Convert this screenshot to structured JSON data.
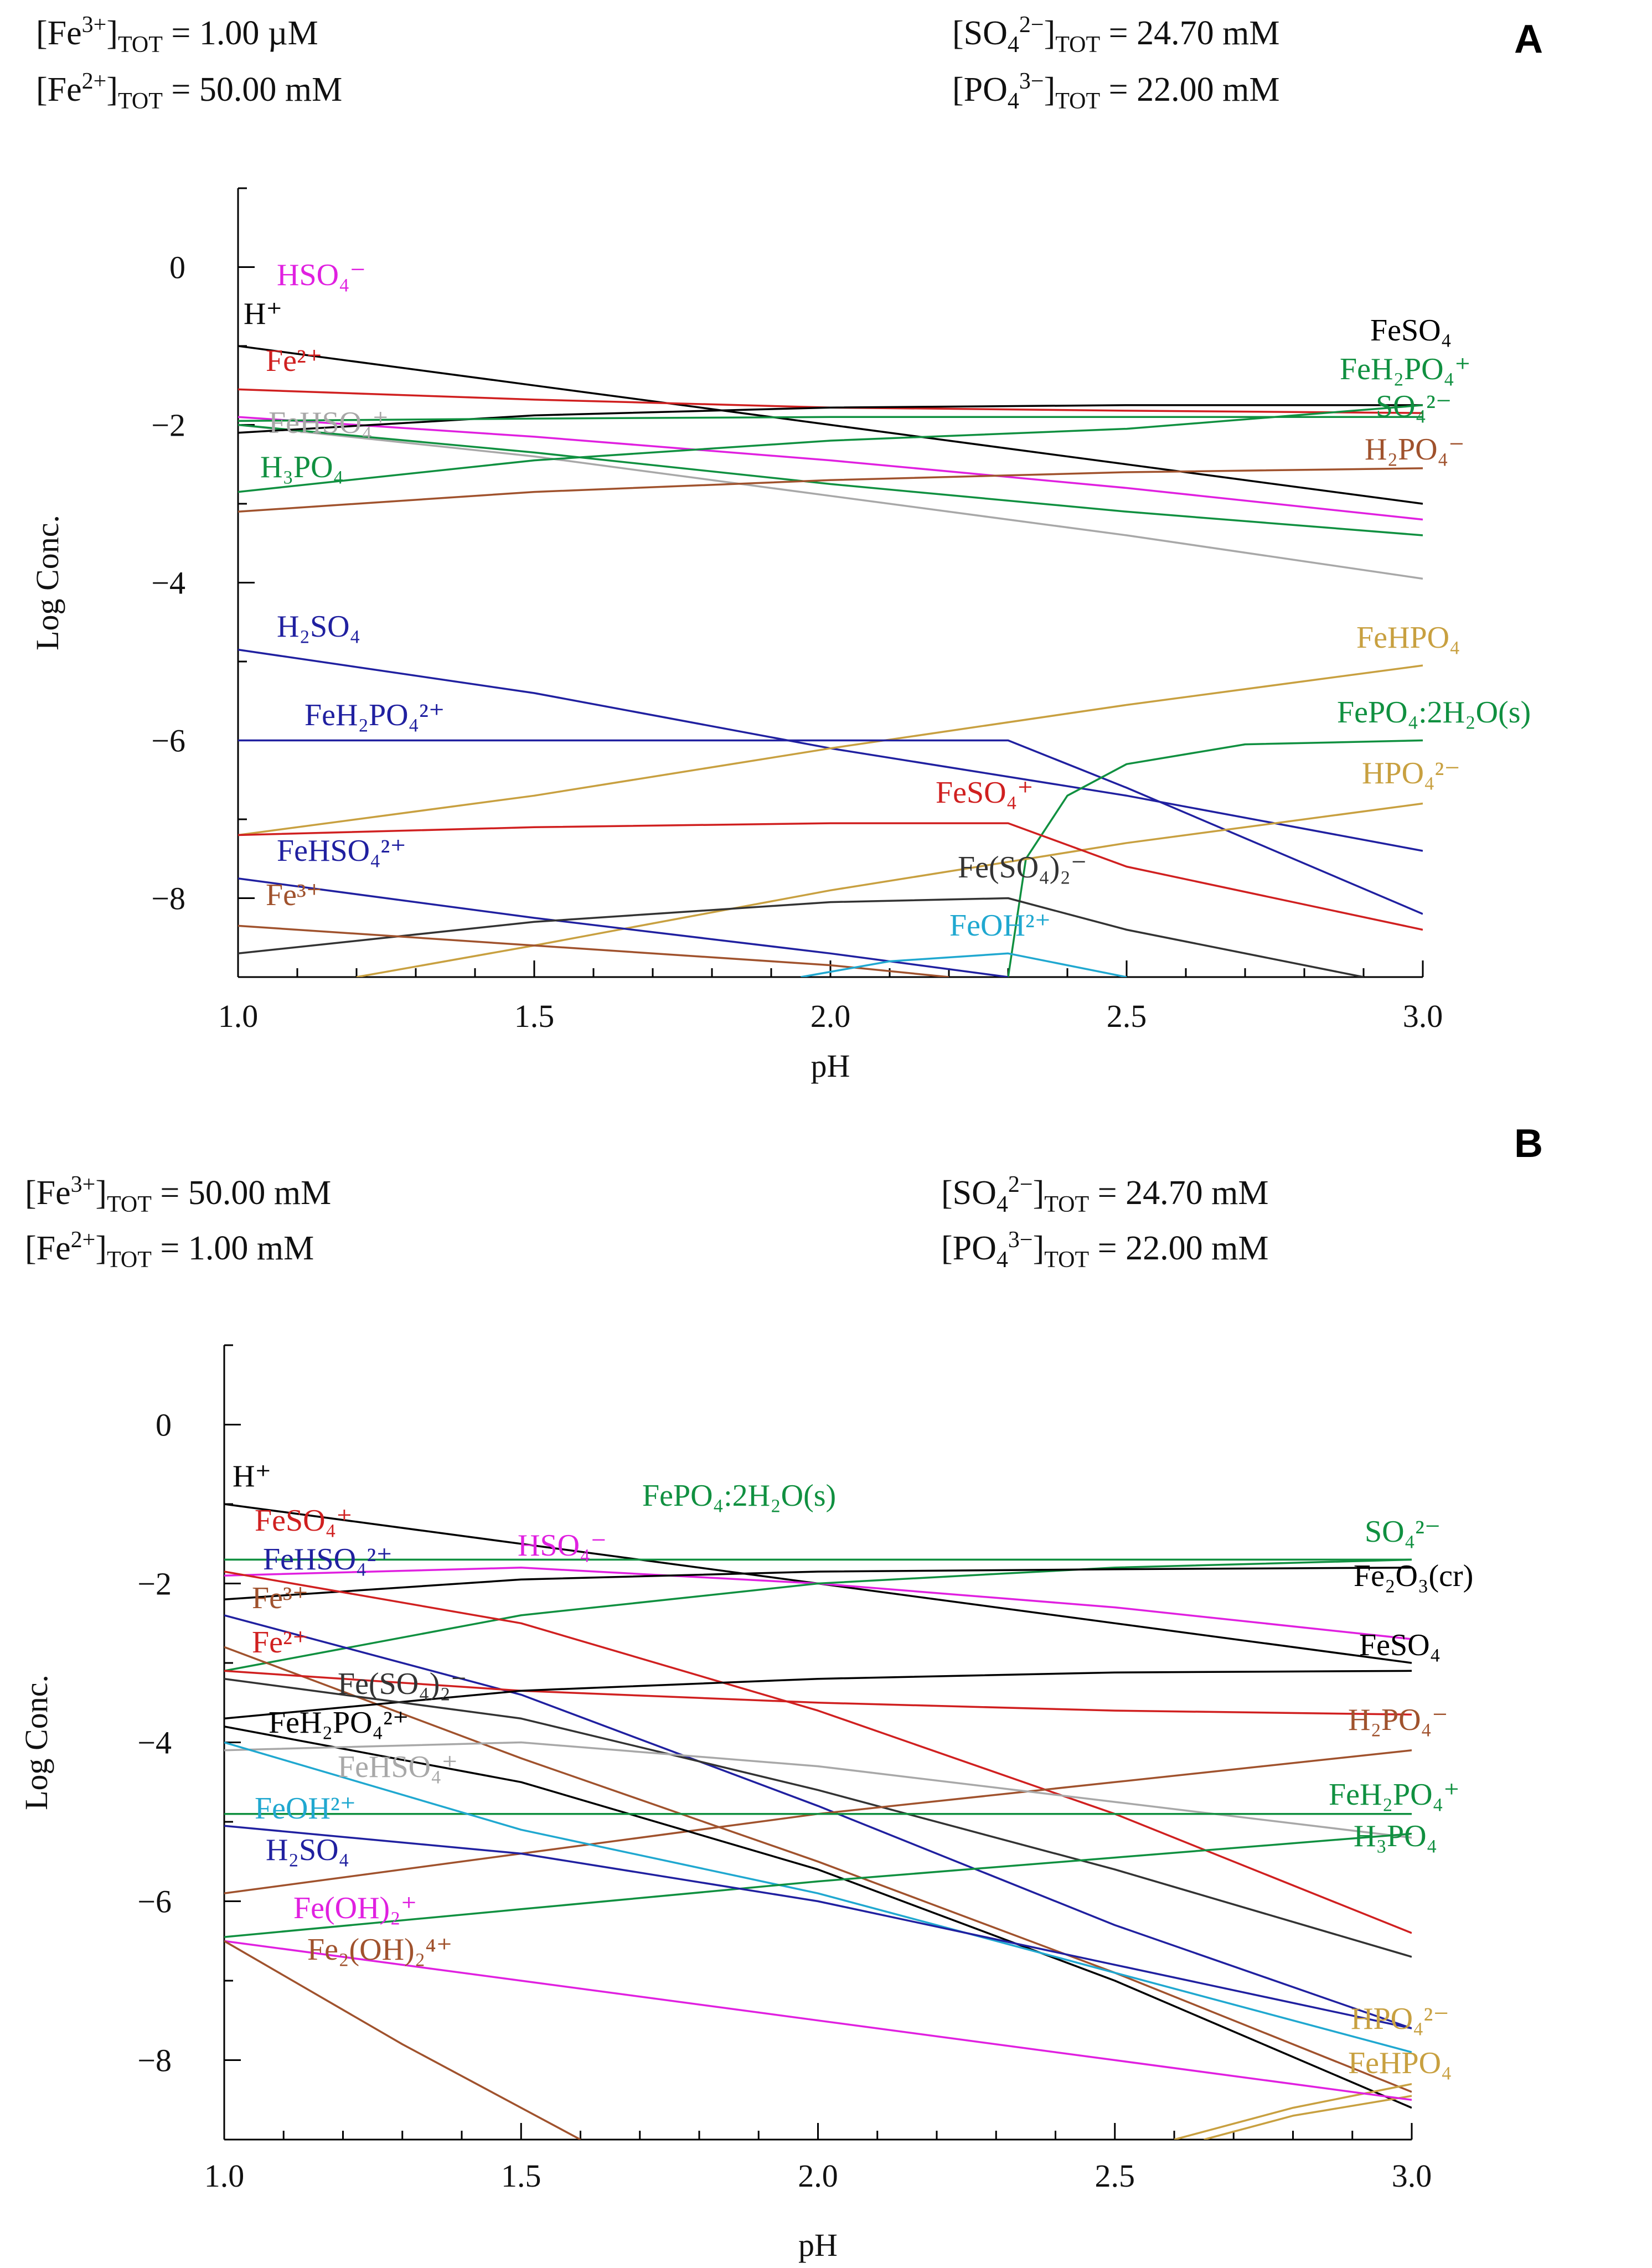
{
  "chart_data": [
    {
      "panel": "A",
      "type": "line",
      "xlabel": "pH",
      "ylabel": "Log Conc.",
      "xlim": [
        1.0,
        3.0
      ],
      "ylim": [
        -9,
        1
      ],
      "xticks": [
        "1.0",
        "1.5",
        "2.0",
        "2.5",
        "3.0"
      ],
      "yticks": [
        "0",
        "−2",
        "−4",
        "−6",
        "−8"
      ],
      "conditions": [
        {
          "text": "[Fe3+]TOT =   1.00 µM"
        },
        {
          "text": "[Fe2+]TOT =  50.00 mM"
        },
        {
          "text": "[SO42−]TOT =  24.70 mM"
        },
        {
          "text": "[PO43−]TOT =  22.00 mM"
        }
      ],
      "series": [
        {
          "name": "H+",
          "label": "H⁺",
          "color": "#000000",
          "x": [
            1.0,
            1.5,
            2.0,
            2.5,
            3.0
          ],
          "y": [
            -1.0,
            -1.5,
            -2.0,
            -2.5,
            -3.0
          ]
        },
        {
          "name": "HSO4-",
          "label": "HSO₄⁻",
          "color": "#e020e0",
          "x": [
            1.0,
            1.5,
            2.0,
            2.5,
            3.0
          ],
          "y": [
            -1.9,
            -2.15,
            -2.45,
            -2.8,
            -3.2
          ]
        },
        {
          "name": "Fe2+",
          "label": "Fe²⁺",
          "color": "#d02020",
          "x": [
            1.0,
            1.5,
            2.0,
            2.5,
            3.0
          ],
          "y": [
            -1.55,
            -1.68,
            -1.78,
            -1.82,
            -1.85
          ]
        },
        {
          "name": "FeHSO4+",
          "label": "FeHSO₄⁺",
          "color": "#a8a8a8",
          "x": [
            1.0,
            1.5,
            2.0,
            2.5,
            3.0
          ],
          "y": [
            -2.0,
            -2.4,
            -2.9,
            -3.4,
            -3.95
          ]
        },
        {
          "name": "H3PO4",
          "label": "H₃PO₄",
          "color": "#109040",
          "x": [
            1.0,
            1.5,
            2.0,
            2.5,
            3.0
          ],
          "y": [
            -2.0,
            -2.35,
            -2.75,
            -3.1,
            -3.4
          ]
        },
        {
          "name": "FeSO4",
          "label": "FeSO₄",
          "color": "#000000",
          "x": [
            1.0,
            1.5,
            2.0,
            2.5,
            3.0
          ],
          "y": [
            -2.1,
            -1.88,
            -1.78,
            -1.75,
            -1.75
          ]
        },
        {
          "name": "FeH2PO4+",
          "label": "FeH₂PO₄⁺",
          "color": "#109040",
          "x": [
            1.0,
            1.5,
            2.0,
            2.5,
            3.0
          ],
          "y": [
            -2.85,
            -2.45,
            -2.2,
            -2.05,
            -1.75
          ]
        },
        {
          "name": "SO42-",
          "label": "SO₄²⁻",
          "color": "#109040",
          "x": [
            1.0,
            1.5,
            2.0,
            2.5,
            3.0
          ],
          "y": [
            -1.95,
            -1.92,
            -1.9,
            -1.9,
            -1.9
          ]
        },
        {
          "name": "H2PO4-",
          "label": "H₂PO₄⁻",
          "color": "#a0522d",
          "x": [
            1.0,
            1.5,
            2.0,
            2.5,
            3.0
          ],
          "y": [
            -3.1,
            -2.85,
            -2.7,
            -2.6,
            -2.55
          ]
        },
        {
          "name": "H2SO4",
          "label": "H₂SO₄",
          "color": "#2020a0",
          "x": [
            1.0,
            1.5,
            2.0,
            2.5,
            3.0
          ],
          "y": [
            -4.85,
            -5.4,
            -6.1,
            -6.7,
            -7.4
          ]
        },
        {
          "name": "FeHPO4",
          "label": "FeHPO₄",
          "color": "#c8a040",
          "x": [
            1.0,
            1.5,
            2.0,
            2.5,
            3.0
          ],
          "y": [
            -7.2,
            -6.7,
            -6.1,
            -5.55,
            -5.05
          ]
        },
        {
          "name": "FeH2PO42+",
          "label": "FeH₂PO₄²⁺",
          "color": "#2020a0",
          "x": [
            1.0,
            1.5,
            2.0,
            2.3,
            2.5,
            3.0
          ],
          "y": [
            -6.0,
            -6.0,
            -6.0,
            -6.0,
            -6.6,
            -8.2
          ]
        },
        {
          "name": "FePO4:2H2O(s)",
          "label": "FePO₄:2H₂O(s)",
          "color": "#109040",
          "x": [
            2.3,
            2.33,
            2.4,
            2.5,
            2.7,
            3.0
          ],
          "y": [
            -9.0,
            -7.5,
            -6.7,
            -6.3,
            -6.05,
            -6.0
          ]
        },
        {
          "name": "HPO42-",
          "label": "HPO₄²⁻",
          "color": "#c8a040",
          "x": [
            1.2,
            1.5,
            2.0,
            2.5,
            3.0
          ],
          "y": [
            -9.0,
            -8.6,
            -7.9,
            -7.3,
            -6.8
          ]
        },
        {
          "name": "FeSO4+",
          "label": "FeSO₄⁺",
          "color": "#d02020",
          "x": [
            1.0,
            1.5,
            2.0,
            2.3,
            2.5,
            3.0
          ],
          "y": [
            -7.2,
            -7.1,
            -7.05,
            -7.05,
            -7.6,
            -8.4
          ]
        },
        {
          "name": "FeHSO42+",
          "label": "FeHSO₄²⁺",
          "color": "#2020a0",
          "x": [
            1.0,
            1.5,
            2.0,
            2.3
          ],
          "y": [
            -7.75,
            -8.25,
            -8.7,
            -9.0
          ]
        },
        {
          "name": "Fe(SO4)2-",
          "label": "Fe(SO₄)₂⁻",
          "color": "#333333",
          "x": [
            1.0,
            1.5,
            2.0,
            2.3,
            2.5,
            2.9
          ],
          "y": [
            -8.7,
            -8.3,
            -8.05,
            -8.0,
            -8.4,
            -9.0
          ]
        },
        {
          "name": "Fe3+",
          "label": "Fe³⁺",
          "color": "#a0522d",
          "x": [
            1.0,
            1.5,
            2.0,
            2.2
          ],
          "y": [
            -8.35,
            -8.6,
            -8.85,
            -9.0
          ]
        },
        {
          "name": "FeOH2+",
          "label": "FeOH²⁺",
          "color": "#20a8d0",
          "x": [
            1.95,
            2.1,
            2.3,
            2.5
          ],
          "y": [
            -9.0,
            -8.8,
            -8.7,
            -9.0
          ]
        }
      ]
    },
    {
      "panel": "B",
      "type": "line",
      "xlabel": "pH",
      "ylabel": "Log Conc.",
      "xlim": [
        1.0,
        3.0
      ],
      "ylim": [
        -9,
        1
      ],
      "xticks": [
        "1.0",
        "1.5",
        "2.0",
        "2.5",
        "3.0"
      ],
      "yticks": [
        "0",
        "−2",
        "−4",
        "−6",
        "−8"
      ],
      "conditions": [
        {
          "text": "[Fe3+]TOT =  50.00 mM"
        },
        {
          "text": "[Fe2+]TOT =   1.00 mM"
        },
        {
          "text": "[SO42−]TOT =  24.70 mM"
        },
        {
          "text": "[PO43−]TOT =  22.00 mM"
        }
      ],
      "series": [
        {
          "name": "H+",
          "label": "H⁺",
          "color": "#000000",
          "x": [
            1.0,
            1.5,
            2.0,
            2.5,
            3.0
          ],
          "y": [
            -1.0,
            -1.5,
            -2.0,
            -2.5,
            -3.0
          ]
        },
        {
          "name": "FePO4:2H2O(s)",
          "label": "FePO₄:2H₂O(s)",
          "color": "#109040",
          "x": [
            1.0,
            1.5,
            2.0,
            2.5,
            3.0
          ],
          "y": [
            -1.7,
            -1.7,
            -1.7,
            -1.7,
            -1.7
          ]
        },
        {
          "name": "HSO4-",
          "label": "HSO₄⁻",
          "color": "#e020e0",
          "x": [
            1.0,
            1.5,
            2.0,
            2.5,
            3.0
          ],
          "y": [
            -1.9,
            -1.8,
            -2.0,
            -2.3,
            -2.7
          ]
        },
        {
          "name": "SO42-",
          "label": "SO₄²⁻",
          "color": "#109040",
          "x": [
            1.0,
            1.5,
            2.0,
            2.5,
            3.0
          ],
          "y": [
            -3.1,
            -2.4,
            -2.0,
            -1.8,
            -1.7
          ]
        },
        {
          "name": "Fe2O3(cr)",
          "label": "Fe₂O₃(cr)",
          "color": "#000000",
          "x": [
            1.0,
            1.5,
            2.0,
            2.5,
            3.0
          ],
          "y": [
            -2.2,
            -1.95,
            -1.85,
            -1.82,
            -1.8
          ]
        },
        {
          "name": "FeSO4+",
          "label": "FeSO₄⁺",
          "color": "#d02020",
          "x": [
            1.0,
            1.5,
            2.0,
            2.5,
            3.0
          ],
          "y": [
            -1.85,
            -2.5,
            -3.6,
            -4.9,
            -6.4
          ]
        },
        {
          "name": "FeHSO42+",
          "label": "FeHSO₄²⁺",
          "color": "#2020a0",
          "x": [
            1.0,
            1.5,
            2.0,
            2.5,
            3.0
          ],
          "y": [
            -2.4,
            -3.4,
            -4.8,
            -6.3,
            -7.6
          ]
        },
        {
          "name": "Fe3+",
          "label": "Fe³⁺",
          "color": "#a0522d",
          "x": [
            1.0,
            1.5,
            2.0,
            2.5,
            3.0
          ],
          "y": [
            -2.8,
            -4.2,
            -5.5,
            -6.9,
            -8.4
          ]
        },
        {
          "name": "Fe2+",
          "label": "Fe²⁺",
          "color": "#d02020",
          "x": [
            1.0,
            1.5,
            2.0,
            2.5,
            3.0
          ],
          "y": [
            -3.1,
            -3.35,
            -3.5,
            -3.6,
            -3.65
          ]
        },
        {
          "name": "FeSO4",
          "label": "FeSO₄",
          "color": "#000000",
          "x": [
            1.0,
            1.5,
            2.0,
            2.5,
            3.0
          ],
          "y": [
            -3.7,
            -3.35,
            -3.2,
            -3.12,
            -3.1
          ]
        },
        {
          "name": "Fe(SO4)2-",
          "label": "Fe(SO₄)₂⁻",
          "color": "#333333",
          "x": [
            1.0,
            1.5,
            2.0,
            2.5,
            3.0
          ],
          "y": [
            -3.2,
            -3.7,
            -4.6,
            -5.6,
            -6.7
          ]
        },
        {
          "name": "H2PO4-",
          "label": "H₂PO₄⁻",
          "color": "#a0522d",
          "x": [
            1.0,
            1.5,
            2.0,
            2.5,
            3.0
          ],
          "y": [
            -5.9,
            -5.4,
            -4.9,
            -4.5,
            -4.1
          ]
        },
        {
          "name": "FeH2PO42+",
          "label": "FeH₂PO₄²⁺",
          "color": "#000000",
          "x": [
            1.0,
            1.5,
            2.0,
            2.5,
            3.0
          ],
          "y": [
            -3.8,
            -4.5,
            -5.6,
            -7.0,
            -8.6
          ]
        },
        {
          "name": "FeHSO4+",
          "label": "FeHSO₄⁺",
          "color": "#a8a8a8",
          "x": [
            1.0,
            1.5,
            2.0,
            2.5,
            3.0
          ],
          "y": [
            -4.1,
            -4.0,
            -4.3,
            -4.75,
            -5.2
          ]
        },
        {
          "name": "FeH2PO4+",
          "label": "FeH₂PO₄⁺",
          "color": "#109040",
          "x": [
            1.0,
            1.5,
            2.0,
            2.5,
            3.0
          ],
          "y": [
            -4.9,
            -4.9,
            -4.9,
            -4.9,
            -4.9
          ]
        },
        {
          "name": "FeOH2+",
          "label": "FeOH²⁺",
          "color": "#20a8d0",
          "x": [
            1.0,
            1.5,
            2.0,
            2.5,
            3.0
          ],
          "y": [
            -4.0,
            -5.1,
            -5.9,
            -6.9,
            -7.9
          ]
        },
        {
          "name": "H3PO4",
          "label": "H₃PO₄",
          "color": "#109040",
          "x": [
            1.0,
            1.5,
            2.0,
            2.5,
            3.0
          ],
          "y": [
            -6.45,
            -6.1,
            -5.75,
            -5.45,
            -5.15
          ]
        },
        {
          "name": "H2SO4",
          "label": "H₂SO₄",
          "color": "#2020a0",
          "x": [
            1.0,
            1.5,
            2.0,
            2.5,
            3.0
          ],
          "y": [
            -5.05,
            -5.4,
            -6.0,
            -6.8,
            -7.6
          ]
        },
        {
          "name": "HPO42-",
          "label": "HPO₄²⁻",
          "color": "#c8a040",
          "x": [
            2.6,
            2.8,
            3.0
          ],
          "y": [
            -9.0,
            -8.6,
            -8.3
          ]
        },
        {
          "name": "FeHPO4",
          "label": "FeHPO₄",
          "color": "#c8a040",
          "x": [
            2.65,
            2.8,
            3.0
          ],
          "y": [
            -9.0,
            -8.7,
            -8.45
          ]
        },
        {
          "name": "Fe(OH)2+",
          "label": "Fe(OH)₂⁺",
          "color": "#e020e0",
          "x": [
            1.0,
            1.5,
            2.0,
            2.5,
            3.0
          ],
          "y": [
            -6.5,
            -7.0,
            -7.5,
            -8.0,
            -8.5
          ]
        },
        {
          "name": "Fe2(OH)24+",
          "label": "Fe₂(OH)₂⁴⁺",
          "color": "#a0522d",
          "x": [
            1.0,
            1.3,
            1.6
          ],
          "y": [
            -6.5,
            -7.8,
            -9.0
          ]
        }
      ]
    }
  ]
}
